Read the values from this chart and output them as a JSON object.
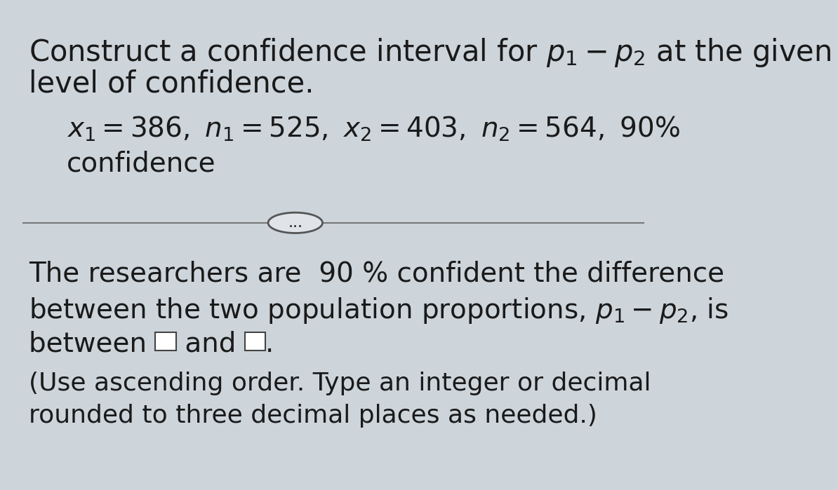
{
  "background_color": "#cdd5db",
  "text_color": "#1a1a1a",
  "font_size_title": 30,
  "font_size_data": 28,
  "font_size_answer": 28,
  "font_size_note": 26,
  "box_color": "#ffffff",
  "box_edge_color": "#444444",
  "divider_color": "#777777",
  "ellipse_color": "#e0e4e8",
  "ellipse_edge": "#555555",
  "line1": "Construct a confidence interval for $p_1 - p_2$ at the given",
  "line2": "level of confidence.",
  "data_line": "$x_1 = 386,\\ n_1 = 525,\\ x_2 = 403,\\ n_2 = 564,\\ 90\\%$",
  "confidence_word": "confidence",
  "dots": "...",
  "ans1": "The researchers are  90 % confident the difference",
  "ans2": "between the two population proportions, $p_1 - p_2$, is",
  "ans3_pre": "between ",
  "ans3_mid": " and ",
  "ans3_end": ".",
  "note1": "(Use ascending order. Type an integer or decimal",
  "note2": "rounded to three decimal places as needed.)"
}
